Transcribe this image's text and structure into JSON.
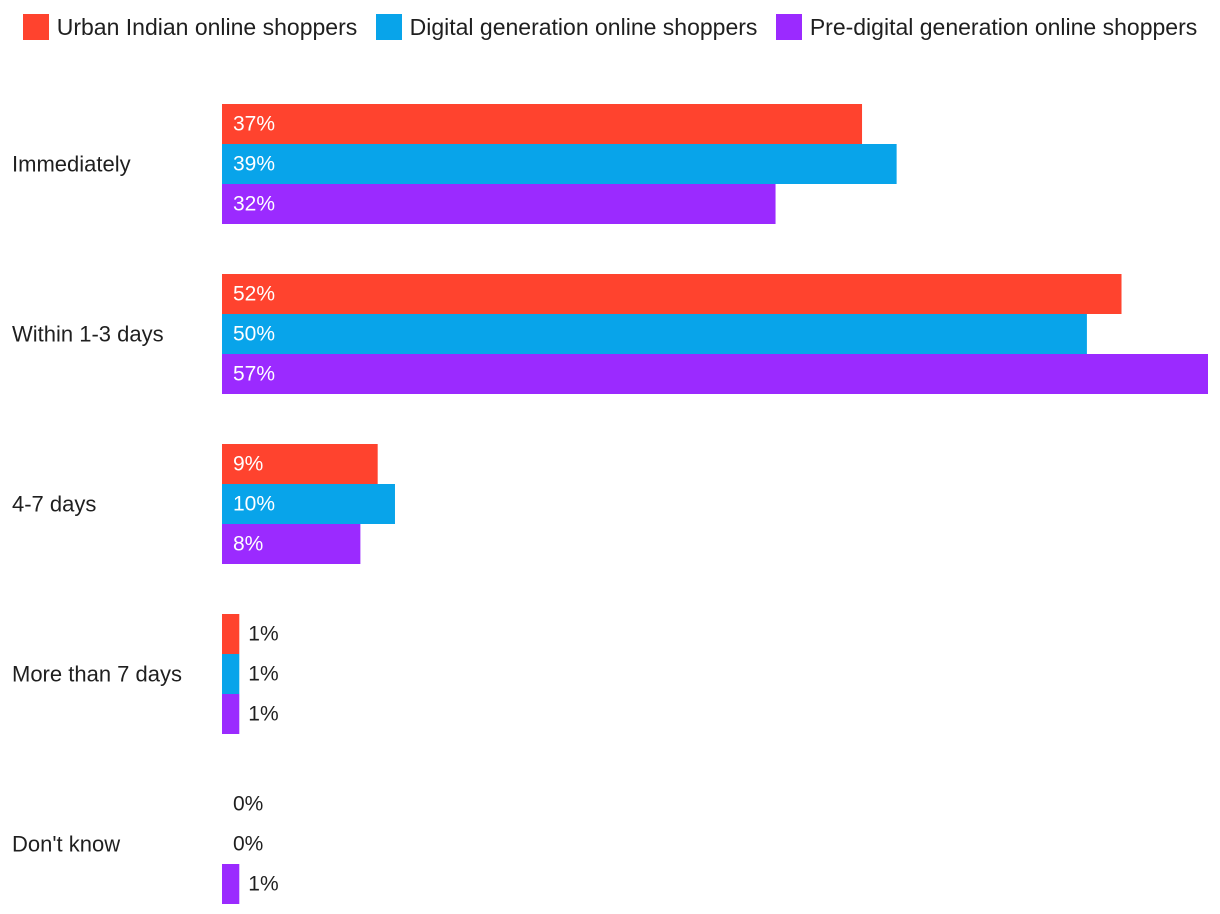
{
  "chart_data": {
    "type": "bar",
    "orientation": "horizontal",
    "categories": [
      "Immediately",
      "Within 1-3 days",
      "4-7 days",
      "More than 7 days",
      "Don't know"
    ],
    "series": [
      {
        "name": "Urban Indian online shoppers",
        "color": "#ff432e",
        "values": [
          37,
          52,
          9,
          1,
          0
        ],
        "labels": [
          "37%",
          "52%",
          "9%",
          "1%",
          "0%"
        ]
      },
      {
        "name": "Digital generation online shoppers",
        "color": "#08a4ea",
        "values": [
          39,
          50,
          10,
          1,
          0
        ],
        "labels": [
          "39%",
          "50%",
          "10%",
          "1%",
          "0%"
        ]
      },
      {
        "name": "Pre-digital generation online shoppers",
        "color": "#9b2aff",
        "values": [
          32,
          57,
          8,
          1,
          1
        ],
        "labels": [
          "32%",
          "57%",
          "8%",
          "1%",
          "1%"
        ]
      }
    ],
    "xlim": [
      0,
      57
    ],
    "legend_position": "top",
    "grid": false,
    "title": "",
    "xlabel": "",
    "ylabel": ""
  }
}
